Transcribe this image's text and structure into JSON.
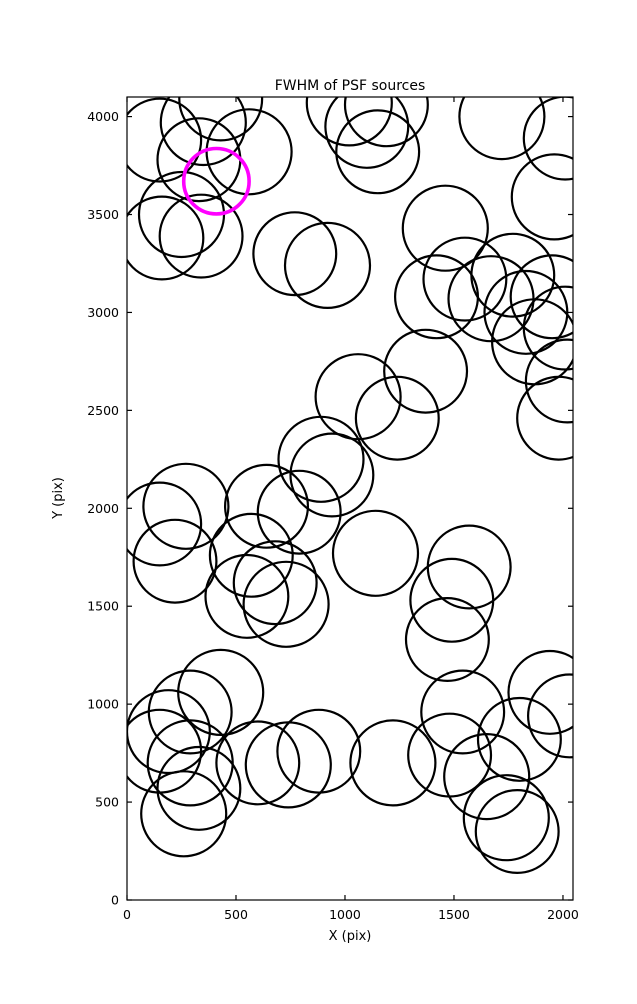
{
  "figure": {
    "title": "FWHM of PSF sources",
    "xlabel": "X (pix)",
    "ylabel": "Y (pix)"
  },
  "chart_data": {
    "type": "scatter",
    "title": "FWHM of PSF sources",
    "xlabel": "X (pix)",
    "ylabel": "Y (pix)",
    "xlim": [
      0,
      2046
    ],
    "ylim": [
      0,
      4100
    ],
    "xticks": [
      0,
      500,
      1000,
      1500,
      2000
    ],
    "yticks": [
      0,
      500,
      1000,
      1500,
      2000,
      2500,
      3000,
      3500,
      4000
    ],
    "grid": false,
    "legend_position": "none",
    "marker_style": "open-circle",
    "circle_color": "#000000",
    "highlight_color": "#ff00ff",
    "circles": [
      {
        "x": 150,
        "y": 3880,
        "r": 190
      },
      {
        "x": 350,
        "y": 3970,
        "r": 195
      },
      {
        "x": 330,
        "y": 3780,
        "r": 190
      },
      {
        "x": 560,
        "y": 3820,
        "r": 195
      },
      {
        "x": 430,
        "y": 4090,
        "r": 190
      },
      {
        "x": 250,
        "y": 3500,
        "r": 195
      },
      {
        "x": 160,
        "y": 3380,
        "r": 190
      },
      {
        "x": 340,
        "y": 3390,
        "r": 190
      },
      {
        "x": 1020,
        "y": 4070,
        "r": 195
      },
      {
        "x": 1190,
        "y": 4060,
        "r": 190
      },
      {
        "x": 1100,
        "y": 3950,
        "r": 190
      },
      {
        "x": 1150,
        "y": 3820,
        "r": 190
      },
      {
        "x": 1720,
        "y": 4000,
        "r": 195
      },
      {
        "x": 2010,
        "y": 3890,
        "r": 190
      },
      {
        "x": 1960,
        "y": 3590,
        "r": 195
      },
      {
        "x": 770,
        "y": 3300,
        "r": 190
      },
      {
        "x": 920,
        "y": 3240,
        "r": 195
      },
      {
        "x": 1460,
        "y": 3430,
        "r": 195
      },
      {
        "x": 1420,
        "y": 3080,
        "r": 190
      },
      {
        "x": 1550,
        "y": 3170,
        "r": 190
      },
      {
        "x": 1670,
        "y": 3070,
        "r": 195
      },
      {
        "x": 1770,
        "y": 3190,
        "r": 190
      },
      {
        "x": 1830,
        "y": 3000,
        "r": 190
      },
      {
        "x": 1950,
        "y": 3080,
        "r": 190
      },
      {
        "x": 2010,
        "y": 2920,
        "r": 190
      },
      {
        "x": 1870,
        "y": 2850,
        "r": 195
      },
      {
        "x": 2020,
        "y": 2650,
        "r": 190
      },
      {
        "x": 1980,
        "y": 2460,
        "r": 190
      },
      {
        "x": 1060,
        "y": 2570,
        "r": 195
      },
      {
        "x": 1240,
        "y": 2460,
        "r": 190
      },
      {
        "x": 1370,
        "y": 2700,
        "r": 190
      },
      {
        "x": 890,
        "y": 2250,
        "r": 195
      },
      {
        "x": 940,
        "y": 2170,
        "r": 190
      },
      {
        "x": 790,
        "y": 1980,
        "r": 190
      },
      {
        "x": 640,
        "y": 2010,
        "r": 190
      },
      {
        "x": 270,
        "y": 2010,
        "r": 195
      },
      {
        "x": 150,
        "y": 1920,
        "r": 190
      },
      {
        "x": 220,
        "y": 1730,
        "r": 190
      },
      {
        "x": 1140,
        "y": 1770,
        "r": 195
      },
      {
        "x": 570,
        "y": 1760,
        "r": 190
      },
      {
        "x": 680,
        "y": 1620,
        "r": 190
      },
      {
        "x": 550,
        "y": 1550,
        "r": 190
      },
      {
        "x": 730,
        "y": 1510,
        "r": 195
      },
      {
        "x": 1570,
        "y": 1700,
        "r": 190
      },
      {
        "x": 1490,
        "y": 1530,
        "r": 190
      },
      {
        "x": 1470,
        "y": 1330,
        "r": 190
      },
      {
        "x": 430,
        "y": 1060,
        "r": 195
      },
      {
        "x": 290,
        "y": 960,
        "r": 190
      },
      {
        "x": 190,
        "y": 860,
        "r": 190
      },
      {
        "x": 150,
        "y": 760,
        "r": 190
      },
      {
        "x": 290,
        "y": 700,
        "r": 195
      },
      {
        "x": 330,
        "y": 570,
        "r": 190
      },
      {
        "x": 260,
        "y": 440,
        "r": 195
      },
      {
        "x": 600,
        "y": 700,
        "r": 190
      },
      {
        "x": 740,
        "y": 690,
        "r": 195
      },
      {
        "x": 880,
        "y": 760,
        "r": 190
      },
      {
        "x": 1220,
        "y": 700,
        "r": 195
      },
      {
        "x": 1540,
        "y": 960,
        "r": 190
      },
      {
        "x": 1480,
        "y": 740,
        "r": 190
      },
      {
        "x": 1650,
        "y": 630,
        "r": 195
      },
      {
        "x": 1800,
        "y": 820,
        "r": 190
      },
      {
        "x": 1940,
        "y": 1060,
        "r": 190
      },
      {
        "x": 2030,
        "y": 940,
        "r": 190
      },
      {
        "x": 1740,
        "y": 420,
        "r": 195
      },
      {
        "x": 1790,
        "y": 350,
        "r": 190
      }
    ],
    "highlighted_circle": {
      "x": 410,
      "y": 3670,
      "r": 150
    }
  }
}
